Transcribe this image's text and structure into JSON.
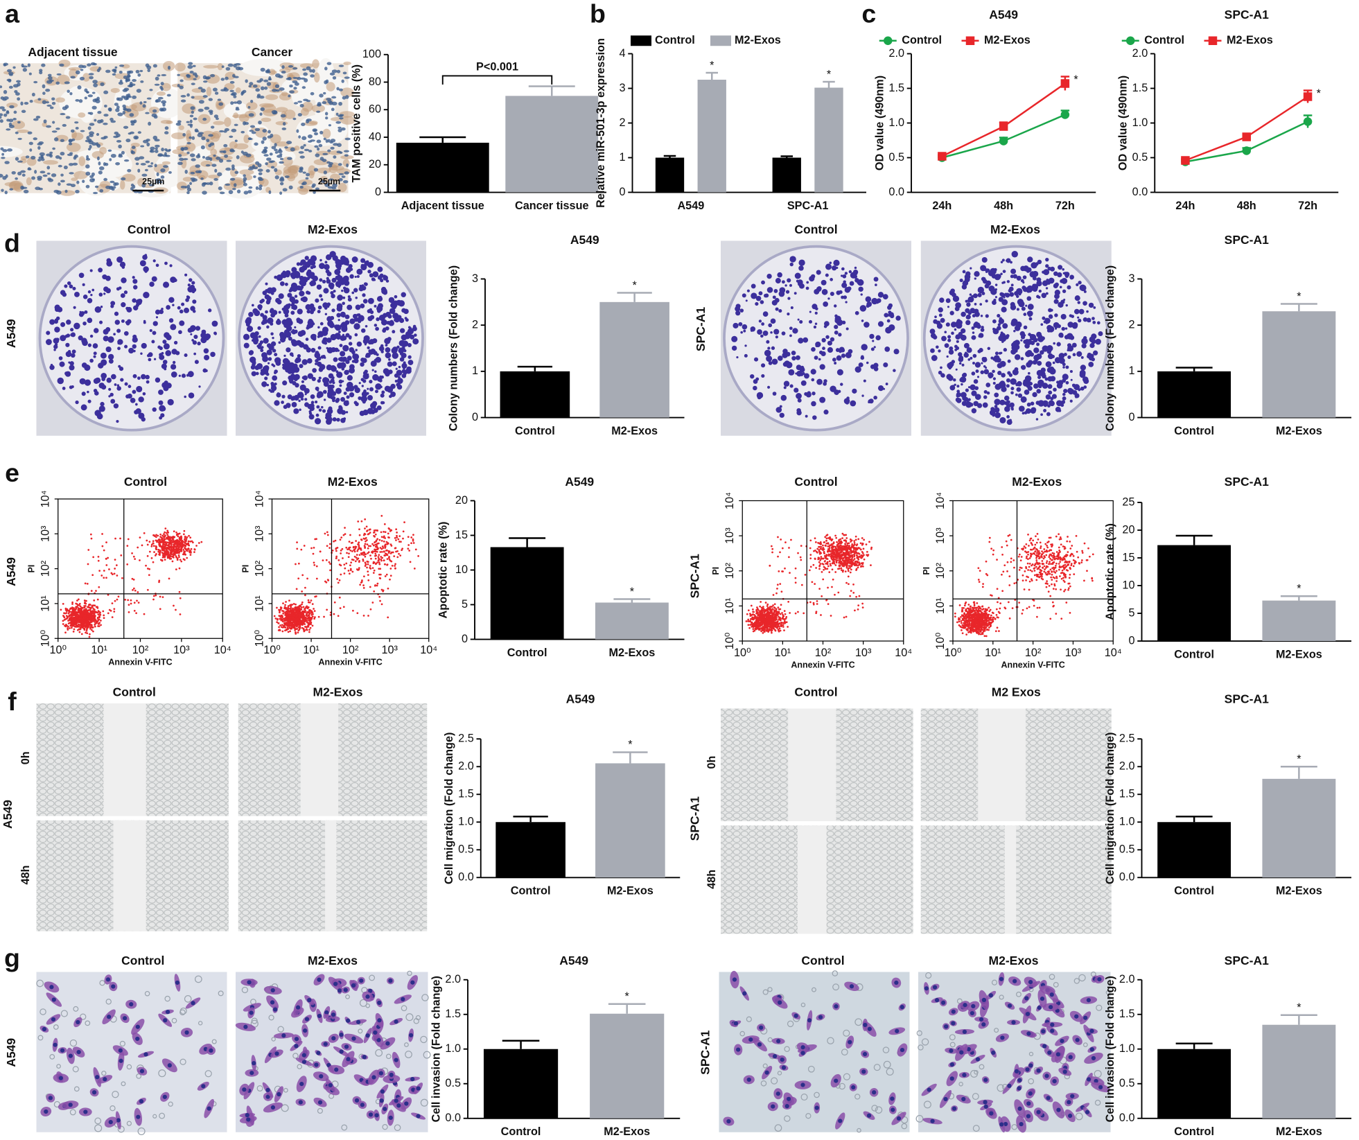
{
  "chart_data": [
    {
      "type": "bar",
      "ylabel": "TAM positive cells (%)",
      "categories": [
        "Adjacent tissue",
        "Cancer tissue"
      ],
      "values": [
        36,
        70
      ],
      "errors": [
        4,
        7
      ],
      "colors": [
        "#000000",
        "#a7abb4"
      ],
      "ylim": [
        0,
        100
      ],
      "yticks": [
        0,
        20,
        40,
        60,
        80,
        100
      ],
      "annotation": "P<0.001"
    },
    {
      "type": "bar",
      "ylabel": "Relative miR-501-3p expression",
      "categories": [
        "A549",
        "SPC-A1"
      ],
      "series": [
        {
          "name": "Control",
          "color": "#000000",
          "values": [
            1.0,
            1.0
          ],
          "errors": [
            0.05,
            0.04
          ]
        },
        {
          "name": "M2-Exos",
          "color": "#a7abb4",
          "values": [
            3.25,
            3.02
          ],
          "errors": [
            0.2,
            0.17
          ],
          "significance": [
            "*",
            "*"
          ]
        }
      ],
      "ylim": [
        0,
        4
      ],
      "yticks": [
        0,
        1,
        2,
        3,
        4
      ],
      "legend": "top"
    },
    {
      "type": "line",
      "title": "A549",
      "ylabel": "OD value (490nm)",
      "categories": [
        "24h",
        "48h",
        "72h"
      ],
      "series": [
        {
          "name": "Control",
          "color": "#1aa64a",
          "marker": "circle",
          "values": [
            0.5,
            0.74,
            1.12
          ],
          "errors": [
            0.02,
            0.05,
            0.06
          ]
        },
        {
          "name": "M2-Exos",
          "color": "#e8262a",
          "marker": "square",
          "values": [
            0.52,
            0.95,
            1.57
          ],
          "errors": [
            0.02,
            0.06,
            0.1
          ],
          "significance": [
            null,
            null,
            "*"
          ]
        }
      ],
      "ylim": [
        0,
        2
      ],
      "yticks": [
        {
          "value": 0,
          "label": "0.0"
        },
        0.5,
        {
          "value": 1,
          "label": "1.0"
        },
        1.5,
        {
          "value": 2,
          "label": "2.0"
        }
      ],
      "legend": "top"
    },
    {
      "type": "line",
      "title": "SPC-A1",
      "ylabel": "OD value (490nm)",
      "categories": [
        "24h",
        "48h",
        "72h"
      ],
      "series": [
        {
          "name": "Control",
          "color": "#1aa64a",
          "marker": "circle",
          "values": [
            0.44,
            0.6,
            1.02
          ],
          "errors": [
            0.02,
            0.04,
            0.09
          ]
        },
        {
          "name": "M2-Exos",
          "color": "#e8262a",
          "marker": "square",
          "values": [
            0.46,
            0.8,
            1.38
          ],
          "errors": [
            0.02,
            0.04,
            0.09
          ],
          "significance": [
            null,
            null,
            "*"
          ]
        }
      ],
      "ylim": [
        0,
        2
      ],
      "yticks": [
        {
          "value": 0,
          "label": "0.0"
        },
        0.5,
        {
          "value": 1,
          "label": "1.0"
        },
        1.5,
        {
          "value": 2,
          "label": "2.0"
        }
      ],
      "legend": "top"
    },
    {
      "type": "bar",
      "title": "A549",
      "ylabel": "Colony numbers (Fold change)",
      "categories": [
        "Control",
        "M2-Exos"
      ],
      "values": [
        1.0,
        2.5
      ],
      "errors": [
        0.1,
        0.2
      ],
      "significance": [
        null,
        "*"
      ],
      "colors": [
        "#000000",
        "#a7abb4"
      ],
      "ylim": [
        0,
        3
      ],
      "yticks": [
        0,
        1,
        2,
        3
      ]
    },
    {
      "type": "bar",
      "title": "SPC-A1",
      "ylabel": "Colony numbers (Fold change)",
      "categories": [
        "Control",
        "M2-Exos"
      ],
      "values": [
        1.0,
        2.3
      ],
      "errors": [
        0.08,
        0.16
      ],
      "significance": [
        null,
        "*"
      ],
      "colors": [
        "#000000",
        "#a7abb4"
      ],
      "ylim": [
        0,
        3
      ],
      "yticks": [
        0,
        1,
        2,
        3
      ]
    },
    {
      "type": "bar",
      "title": "A549",
      "ylabel": "Apoptotic rate (%)",
      "categories": [
        "Control",
        "M2-Exos"
      ],
      "values": [
        13.3,
        5.3
      ],
      "errors": [
        1.3,
        0.5
      ],
      "significance": [
        null,
        "*"
      ],
      "colors": [
        "#000000",
        "#a7abb4"
      ],
      "ylim": [
        0,
        20
      ],
      "yticks": [
        0,
        5,
        10,
        15,
        20
      ]
    },
    {
      "type": "bar",
      "title": "SPC-A1",
      "ylabel": "Apoptotic rate (%)",
      "categories": [
        "Control",
        "M2-Exos"
      ],
      "values": [
        17.3,
        7.3
      ],
      "errors": [
        1.7,
        0.8
      ],
      "significance": [
        null,
        "*"
      ],
      "colors": [
        "#000000",
        "#a7abb4"
      ],
      "ylim": [
        0,
        25
      ],
      "yticks": [
        0,
        5,
        10,
        15,
        20,
        25
      ]
    },
    {
      "type": "bar",
      "title": "A549",
      "ylabel": "Cell migration (Fold change)",
      "categories": [
        "Control",
        "M2-Exos"
      ],
      "values": [
        1.0,
        2.06
      ],
      "errors": [
        0.1,
        0.2
      ],
      "significance": [
        null,
        "*"
      ],
      "colors": [
        "#000000",
        "#a7abb4"
      ],
      "ylim": [
        0,
        2.5
      ],
      "yticks": [
        {
          "value": 0,
          "label": "0.0"
        },
        0.5,
        {
          "value": 1,
          "label": "1.0"
        },
        1.5,
        {
          "value": 2,
          "label": "2.0"
        },
        2.5
      ]
    },
    {
      "type": "bar",
      "title": "SPC-A1",
      "ylabel": "Cell migration (Fold change)",
      "categories": [
        "Control",
        "M2-Exos"
      ],
      "values": [
        1.0,
        1.78
      ],
      "errors": [
        0.1,
        0.22
      ],
      "significance": [
        null,
        "*"
      ],
      "colors": [
        "#000000",
        "#a7abb4"
      ],
      "ylim": [
        0,
        2.5
      ],
      "yticks": [
        {
          "value": 0,
          "label": "0.0"
        },
        0.5,
        {
          "value": 1,
          "label": "1.0"
        },
        1.5,
        {
          "value": 2,
          "label": "2.0"
        },
        2.5
      ]
    },
    {
      "type": "bar",
      "title": "A549",
      "ylabel": "Cell invasion (Fold change)",
      "categories": [
        "Control",
        "M2-Exos"
      ],
      "values": [
        1.0,
        1.51
      ],
      "errors": [
        0.12,
        0.14
      ],
      "significance": [
        null,
        "*"
      ],
      "colors": [
        "#000000",
        "#a7abb4"
      ],
      "ylim": [
        0,
        2
      ],
      "yticks": [
        {
          "value": 0,
          "label": "0.0"
        },
        0.5,
        {
          "value": 1,
          "label": "1.0"
        },
        1.5,
        {
          "value": 2,
          "label": "2.0"
        }
      ]
    },
    {
      "type": "bar",
      "title": "SPC-A1",
      "ylabel": "Cell invasion (Fold change)",
      "categories": [
        "Control",
        "M2-Exos"
      ],
      "values": [
        1.0,
        1.35
      ],
      "errors": [
        0.08,
        0.14
      ],
      "significance": [
        null,
        "*"
      ],
      "colors": [
        "#000000",
        "#a7abb4"
      ],
      "ylim": [
        0,
        2
      ],
      "yticks": [
        {
          "value": 0,
          "label": "0.0"
        },
        0.5,
        {
          "value": 1,
          "label": "1.0"
        },
        1.5,
        {
          "value": 2,
          "label": "2.0"
        }
      ]
    }
  ],
  "figure": {
    "panels": [
      "a",
      "b",
      "c",
      "d",
      "e",
      "f",
      "g"
    ],
    "image_titles": [
      "Adjacent tissue",
      "Cancer",
      "Control",
      "M2-Exos",
      "Control",
      "M2-Exos",
      "Control",
      "M2-Exos",
      "Control",
      "M2-Exos",
      "Control",
      "M2-Exos",
      "Control",
      "M2 Exos",
      "Control",
      "M2-Exos",
      "Control",
      "M2-Exos"
    ],
    "scale_bars": [
      "25µm",
      "25µm"
    ],
    "row_labels": [
      "A549",
      "SPC-A1",
      "A549",
      "SPC-A1",
      "A549",
      "SPC-A1",
      "A549",
      "SPC-A1"
    ],
    "time_labels": [
      "0h",
      "48h",
      "0h",
      "48h"
    ],
    "flow": {
      "xlabel": "Annexin V-FITC",
      "ylabel": "PI",
      "ticks": [
        {
          "value": 1,
          "label": "10⁰"
        },
        {
          "value": 10,
          "label": "10¹"
        },
        {
          "value": 100,
          "label": "10²"
        },
        {
          "value": 1000,
          "label": "10³"
        },
        {
          "value": 10000,
          "label": "10⁴"
        }
      ]
    }
  }
}
